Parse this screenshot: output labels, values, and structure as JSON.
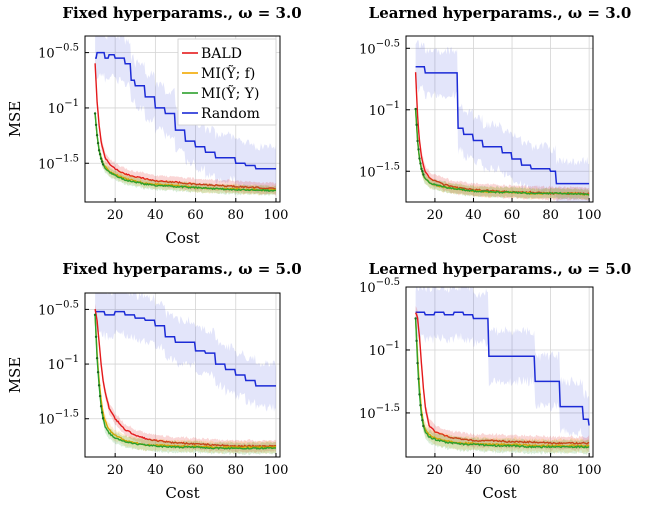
{
  "chart_data": [
    {
      "type": "line",
      "title": "Fixed hyperparams., ω = 3.0",
      "xlabel": "Cost",
      "ylabel": "MSE",
      "xlim": [
        5,
        102
      ],
      "ylim": [
        -1.85,
        -0.35
      ],
      "y_scale": "log10",
      "xticks": [
        20,
        40,
        60,
        80,
        100
      ],
      "yticks": [
        {
          "value": -0.5,
          "base": "10",
          "exp": "−0.5"
        },
        {
          "value": -1,
          "base": "10",
          "exp": "−1"
        },
        {
          "value": -1.5,
          "base": "10",
          "exp": "−1.5"
        }
      ],
      "grid": true,
      "legend": "top-right",
      "series": [
        {
          "name": "BALD",
          "color": "#e41a1c",
          "band": 0.05,
          "x": [
            10,
            11,
            12,
            13,
            14,
            15,
            17,
            20,
            25,
            30,
            35,
            40,
            50,
            60,
            70,
            80,
            90,
            100
          ],
          "y": [
            -0.6,
            -0.95,
            -1.15,
            -1.3,
            -1.38,
            -1.45,
            -1.5,
            -1.55,
            -1.6,
            -1.62,
            -1.64,
            -1.66,
            -1.67,
            -1.69,
            -1.7,
            -1.71,
            -1.72,
            -1.73
          ]
        },
        {
          "name": "MI(Ỹ; f)",
          "color": "#f2a900",
          "band": 0.04,
          "x": [
            10,
            11,
            12,
            13,
            14,
            15,
            17,
            20,
            25,
            30,
            35,
            40,
            50,
            60,
            70,
            80,
            90,
            100
          ],
          "y": [
            -1.05,
            -1.25,
            -1.38,
            -1.45,
            -1.5,
            -1.53,
            -1.57,
            -1.6,
            -1.64,
            -1.66,
            -1.68,
            -1.69,
            -1.7,
            -1.72,
            -1.73,
            -1.73,
            -1.74,
            -1.74
          ]
        },
        {
          "name": "MI(Ỹ; Y)",
          "color": "#2ca02c",
          "band": 0.04,
          "x": [
            10,
            11,
            12,
            13,
            14,
            15,
            17,
            20,
            25,
            30,
            35,
            40,
            50,
            60,
            70,
            80,
            90,
            100
          ],
          "y": [
            -1.05,
            -1.25,
            -1.38,
            -1.46,
            -1.51,
            -1.54,
            -1.58,
            -1.61,
            -1.65,
            -1.67,
            -1.69,
            -1.7,
            -1.71,
            -1.72,
            -1.73,
            -1.74,
            -1.74,
            -1.75
          ]
        },
        {
          "name": "Random",
          "color": "#1c2bd6",
          "band": 0.2,
          "step": true,
          "x": [
            10,
            11,
            13,
            15,
            17,
            20,
            25,
            28,
            30,
            35,
            40,
            45,
            50,
            55,
            60,
            65,
            70,
            75,
            80,
            85,
            90,
            95,
            100
          ],
          "y": [
            -0.55,
            -0.5,
            -0.5,
            -0.55,
            -0.52,
            -0.55,
            -0.6,
            -0.75,
            -0.8,
            -0.9,
            -1.0,
            -1.05,
            -1.2,
            -1.3,
            -1.35,
            -1.4,
            -1.45,
            -1.45,
            -1.5,
            -1.52,
            -1.55,
            -1.55,
            -1.55
          ]
        }
      ]
    },
    {
      "type": "line",
      "title": "Learned hyperparams., ω = 3.0",
      "xlabel": "Cost",
      "ylabel": "",
      "xlim": [
        5,
        102
      ],
      "ylim": [
        -1.75,
        -0.4
      ],
      "y_scale": "log10",
      "xticks": [
        20,
        40,
        60,
        80,
        100
      ],
      "yticks": [
        {
          "value": -0.5,
          "base": "10",
          "exp": "−0.5"
        },
        {
          "value": -1,
          "base": "10",
          "exp": "−1"
        },
        {
          "value": -1.5,
          "base": "10",
          "exp": "−1.5"
        }
      ],
      "grid": true,
      "legend": "none",
      "series": [
        {
          "name": "BALD",
          "color": "#e41a1c",
          "band": 0.05,
          "x": [
            10,
            11,
            12,
            13,
            14,
            15,
            17,
            20,
            25,
            30,
            35,
            40,
            50,
            60,
            70,
            80,
            90,
            100
          ],
          "y": [
            -0.7,
            -1.05,
            -1.25,
            -1.38,
            -1.45,
            -1.5,
            -1.55,
            -1.58,
            -1.61,
            -1.63,
            -1.64,
            -1.65,
            -1.66,
            -1.67,
            -1.67,
            -1.68,
            -1.68,
            -1.68
          ]
        },
        {
          "name": "MI(Ỹ; f)",
          "color": "#f2a900",
          "band": 0.04,
          "x": [
            10,
            11,
            12,
            13,
            14,
            15,
            17,
            20,
            25,
            30,
            35,
            40,
            50,
            60,
            70,
            80,
            90,
            100
          ],
          "y": [
            -1.0,
            -1.25,
            -1.4,
            -1.48,
            -1.53,
            -1.56,
            -1.59,
            -1.61,
            -1.63,
            -1.64,
            -1.65,
            -1.66,
            -1.67,
            -1.67,
            -1.68,
            -1.68,
            -1.68,
            -1.69
          ]
        },
        {
          "name": "MI(Ỹ; Y)",
          "color": "#2ca02c",
          "band": 0.04,
          "x": [
            10,
            11,
            12,
            13,
            14,
            15,
            17,
            20,
            25,
            30,
            35,
            40,
            50,
            60,
            70,
            80,
            90,
            100
          ],
          "y": [
            -1.0,
            -1.25,
            -1.4,
            -1.48,
            -1.53,
            -1.56,
            -1.59,
            -1.61,
            -1.63,
            -1.64,
            -1.65,
            -1.66,
            -1.67,
            -1.67,
            -1.68,
            -1.68,
            -1.68,
            -1.69
          ]
        },
        {
          "name": "Random",
          "color": "#1c2bd6",
          "band": 0.18,
          "step": true,
          "x": [
            10,
            13,
            15,
            20,
            25,
            30,
            32,
            35,
            40,
            45,
            50,
            55,
            60,
            65,
            70,
            75,
            80,
            83,
            90,
            95,
            100
          ],
          "y": [
            -0.65,
            -0.65,
            -0.7,
            -0.7,
            -0.7,
            -0.7,
            -1.15,
            -1.2,
            -1.25,
            -1.3,
            -1.3,
            -1.35,
            -1.4,
            -1.45,
            -1.48,
            -1.48,
            -1.5,
            -1.6,
            -1.6,
            -1.6,
            -1.6
          ]
        }
      ]
    },
    {
      "type": "line",
      "title": "Fixed hyperparams., ω = 5.0",
      "xlabel": "Cost",
      "ylabel": "MSE",
      "xlim": [
        5,
        102
      ],
      "ylim": [
        -1.85,
        -0.35
      ],
      "y_scale": "log10",
      "xticks": [
        20,
        40,
        60,
        80,
        100
      ],
      "yticks": [
        {
          "value": -0.5,
          "base": "10",
          "exp": "−0.5"
        },
        {
          "value": -1,
          "base": "10",
          "exp": "−1"
        },
        {
          "value": -1.5,
          "base": "10",
          "exp": "−1.5"
        }
      ],
      "grid": true,
      "legend": "none",
      "series": [
        {
          "name": "BALD",
          "color": "#e41a1c",
          "band": 0.05,
          "x": [
            10,
            11,
            12,
            13,
            14,
            15,
            17,
            20,
            25,
            30,
            35,
            40,
            50,
            60,
            70,
            80,
            90,
            100
          ],
          "y": [
            -0.5,
            -0.6,
            -0.8,
            -1.0,
            -1.15,
            -1.25,
            -1.4,
            -1.5,
            -1.6,
            -1.65,
            -1.68,
            -1.7,
            -1.72,
            -1.73,
            -1.74,
            -1.75,
            -1.75,
            -1.75
          ]
        },
        {
          "name": "MI(Ỹ; f)",
          "color": "#f2a900",
          "band": 0.05,
          "x": [
            10,
            11,
            12,
            13,
            14,
            15,
            17,
            20,
            25,
            30,
            35,
            40,
            50,
            60,
            70,
            80,
            90,
            100
          ],
          "y": [
            -0.55,
            -0.9,
            -1.15,
            -1.32,
            -1.45,
            -1.52,
            -1.6,
            -1.65,
            -1.7,
            -1.72,
            -1.74,
            -1.74,
            -1.75,
            -1.75,
            -1.76,
            -1.76,
            -1.76,
            -1.76
          ]
        },
        {
          "name": "MI(Ỹ; Y)",
          "color": "#2ca02c",
          "band": 0.05,
          "x": [
            10,
            11,
            12,
            13,
            14,
            15,
            17,
            20,
            25,
            30,
            35,
            40,
            50,
            60,
            70,
            80,
            90,
            100
          ],
          "y": [
            -0.55,
            -0.95,
            -1.2,
            -1.38,
            -1.5,
            -1.57,
            -1.63,
            -1.68,
            -1.71,
            -1.73,
            -1.74,
            -1.75,
            -1.76,
            -1.76,
            -1.77,
            -1.77,
            -1.77,
            -1.77
          ]
        },
        {
          "name": "Random",
          "color": "#1c2bd6",
          "band": 0.2,
          "step": true,
          "x": [
            10,
            15,
            20,
            25,
            30,
            35,
            40,
            45,
            50,
            55,
            60,
            65,
            70,
            75,
            80,
            85,
            90,
            95,
            100
          ],
          "y": [
            -0.52,
            -0.55,
            -0.52,
            -0.55,
            -0.58,
            -0.6,
            -0.65,
            -0.75,
            -0.8,
            -0.8,
            -0.88,
            -0.9,
            -1.0,
            -1.05,
            -1.1,
            -1.15,
            -1.2,
            -1.2,
            -1.2
          ]
        }
      ]
    },
    {
      "type": "line",
      "title": "Learned hyperparams., ω = 5.0",
      "xlabel": "Cost",
      "ylabel": "",
      "xlim": [
        5,
        102
      ],
      "ylim": [
        -1.85,
        -0.5
      ],
      "y_scale": "log10",
      "xticks": [
        20,
        40,
        60,
        80,
        100
      ],
      "yticks": [
        {
          "value": -0.5,
          "base": "10",
          "exp": "−0.5"
        },
        {
          "value": -1,
          "base": "10",
          "exp": "−1"
        },
        {
          "value": -1.5,
          "base": "10",
          "exp": "−1.5"
        }
      ],
      "grid": true,
      "legend": "none",
      "series": [
        {
          "name": "BALD",
          "color": "#e41a1c",
          "band": 0.05,
          "x": [
            10,
            11,
            12,
            13,
            14,
            15,
            17,
            20,
            25,
            30,
            35,
            40,
            50,
            60,
            70,
            80,
            90,
            100
          ],
          "y": [
            -0.7,
            -0.75,
            -0.9,
            -1.1,
            -1.3,
            -1.45,
            -1.6,
            -1.65,
            -1.68,
            -1.7,
            -1.71,
            -1.72,
            -1.72,
            -1.73,
            -1.73,
            -1.74,
            -1.74,
            -1.74
          ]
        },
        {
          "name": "MI(Ỹ; f)",
          "color": "#f2a900",
          "band": 0.05,
          "x": [
            10,
            11,
            12,
            13,
            14,
            15,
            17,
            20,
            25,
            30,
            35,
            40,
            50,
            60,
            70,
            80,
            90,
            100
          ],
          "y": [
            -0.75,
            -1.05,
            -1.3,
            -1.48,
            -1.58,
            -1.63,
            -1.67,
            -1.7,
            -1.72,
            -1.73,
            -1.74,
            -1.74,
            -1.75,
            -1.75,
            -1.76,
            -1.76,
            -1.76,
            -1.76
          ]
        },
        {
          "name": "MI(Ỹ; Y)",
          "color": "#2ca02c",
          "band": 0.05,
          "x": [
            10,
            11,
            12,
            13,
            14,
            15,
            17,
            20,
            25,
            30,
            35,
            40,
            50,
            60,
            70,
            80,
            90,
            100
          ],
          "y": [
            -0.75,
            -1.1,
            -1.35,
            -1.52,
            -1.6,
            -1.65,
            -1.69,
            -1.71,
            -1.73,
            -1.74,
            -1.75,
            -1.75,
            -1.76,
            -1.76,
            -1.77,
            -1.77,
            -1.77,
            -1.77
          ]
        },
        {
          "name": "Random",
          "color": "#1c2bd6",
          "band": 0.2,
          "step": true,
          "x": [
            10,
            13,
            15,
            20,
            25,
            30,
            35,
            40,
            45,
            48,
            50,
            55,
            60,
            65,
            70,
            72,
            75,
            80,
            85,
            90,
            95,
            97,
            100
          ],
          "y": [
            -0.7,
            -0.7,
            -0.72,
            -0.7,
            -0.72,
            -0.7,
            -0.72,
            -0.75,
            -0.75,
            -1.05,
            -1.05,
            -1.05,
            -1.05,
            -1.05,
            -1.05,
            -1.25,
            -1.25,
            -1.25,
            -1.45,
            -1.45,
            -1.45,
            -1.55,
            -1.6
          ]
        }
      ]
    }
  ]
}
